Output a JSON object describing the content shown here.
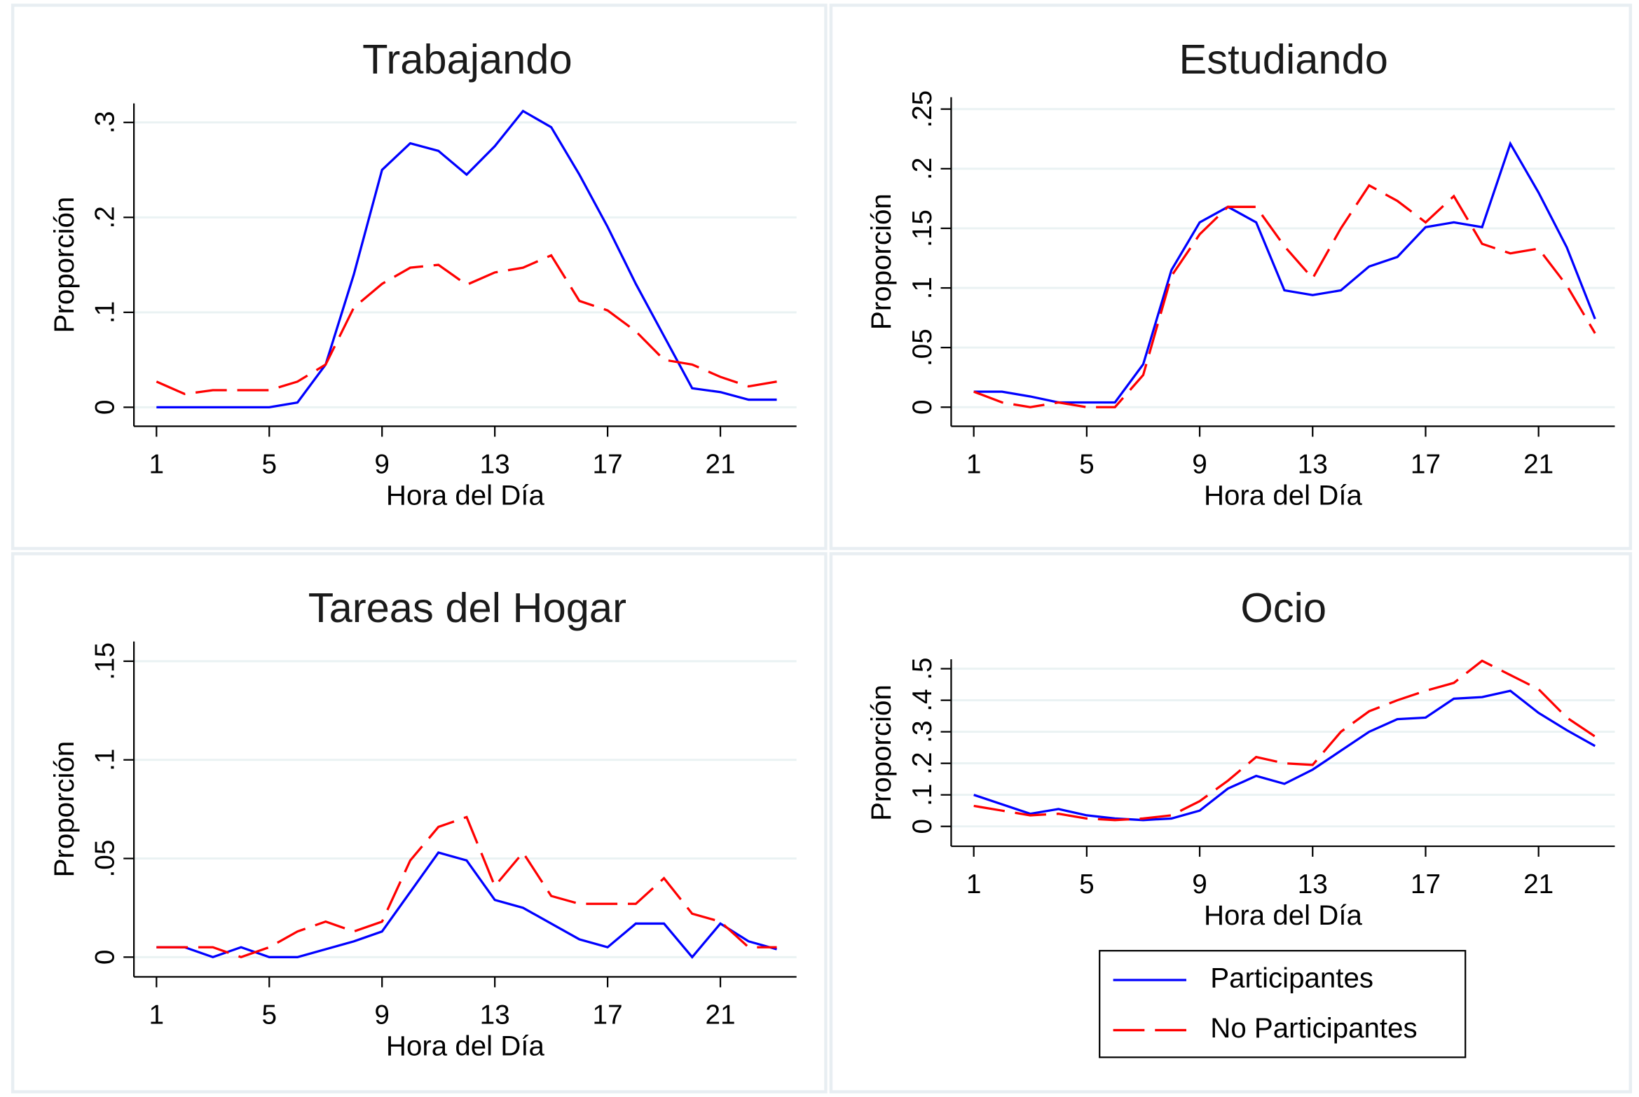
{
  "chart_data": [
    {
      "type": "line",
      "title": "Trabajando",
      "x_label": "Hora del Día",
      "y_label": "Proporción",
      "x": [
        1,
        2,
        3,
        4,
        5,
        6,
        7,
        8,
        9,
        10,
        11,
        12,
        13,
        14,
        15,
        16,
        17,
        18,
        19,
        20,
        21,
        22,
        23
      ],
      "xlim": [
        0.2,
        23.7
      ],
      "xticks": [
        1,
        5,
        9,
        13,
        17,
        21
      ],
      "ylim": [
        -0.02,
        0.32
      ],
      "yticks": [
        0,
        {
          "value": 0.1,
          "label": ".1"
        },
        {
          "value": 0.2,
          "label": ".2"
        },
        {
          "value": 0.3,
          "label": ".3"
        }
      ],
      "grid": true,
      "series": [
        {
          "name": "Participantes",
          "color": "#0000ff",
          "line_style": "solid",
          "values": [
            0,
            0,
            0,
            0,
            0,
            0.005,
            0.045,
            0.14,
            0.25,
            0.278,
            0.27,
            0.245,
            0.275,
            0.312,
            0.295,
            0.245,
            0.19,
            0.13,
            0.075,
            0.02,
            0.016,
            0.008,
            0.008
          ]
        },
        {
          "name": "No Participantes",
          "color": "#ff0000",
          "line_style": "dashed",
          "values": [
            0.027,
            0.014,
            0.018,
            0.018,
            0.018,
            0.027,
            0.045,
            0.105,
            0.13,
            0.147,
            0.15,
            0.129,
            0.142,
            0.147,
            0.16,
            0.112,
            0.102,
            0.08,
            0.05,
            0.045,
            0.032,
            0.022,
            0.027
          ]
        }
      ]
    },
    {
      "type": "line",
      "title": "Estudiando",
      "x_label": "Hora del Día",
      "y_label": "Proporción",
      "x": [
        1,
        2,
        3,
        4,
        5,
        6,
        7,
        8,
        9,
        10,
        11,
        12,
        13,
        14,
        15,
        16,
        17,
        18,
        19,
        20,
        21,
        22,
        23
      ],
      "xlim": [
        0.2,
        23.7
      ],
      "xticks": [
        1,
        5,
        9,
        13,
        17,
        21
      ],
      "ylim": [
        -0.016,
        0.26
      ],
      "yticks": [
        0,
        {
          "value": 0.05,
          "label": ".05"
        },
        {
          "value": 0.1,
          "label": ".1"
        },
        {
          "value": 0.15,
          "label": ".15"
        },
        {
          "value": 0.2,
          "label": ".2"
        },
        {
          "value": 0.25,
          "label": ".25"
        }
      ],
      "grid": true,
      "series": [
        {
          "name": "Participantes",
          "color": "#0000ff",
          "line_style": "solid",
          "values": [
            0.013,
            0.013,
            0.009,
            0.004,
            0.004,
            0.004,
            0.036,
            0.115,
            0.155,
            0.168,
            0.155,
            0.098,
            0.094,
            0.098,
            0.118,
            0.126,
            0.151,
            0.155,
            0.151,
            0.221,
            0.18,
            0.134,
            0.074
          ]
        },
        {
          "name": "No Participantes",
          "color": "#ff0000",
          "line_style": "dashed",
          "values": [
            0.013,
            0.004,
            0,
            0.004,
            0,
            0,
            0.027,
            0.11,
            0.145,
            0.168,
            0.168,
            0.135,
            0.108,
            0.15,
            0.186,
            0.173,
            0.155,
            0.177,
            0.137,
            0.129,
            0.133,
            0.102,
            0.062
          ]
        }
      ]
    },
    {
      "type": "line",
      "title": "Tareas del Hogar",
      "x_label": "Hora del Día",
      "y_label": "Proporción",
      "x": [
        1,
        2,
        3,
        4,
        5,
        6,
        7,
        8,
        9,
        10,
        11,
        12,
        13,
        14,
        15,
        16,
        17,
        18,
        19,
        20,
        21,
        22,
        23
      ],
      "xlim": [
        0.2,
        23.7
      ],
      "xticks": [
        1,
        5,
        9,
        13,
        17,
        21
      ],
      "ylim": [
        -0.01,
        0.16
      ],
      "yticks": [
        0,
        {
          "value": 0.05,
          "label": ".05"
        },
        {
          "value": 0.1,
          "label": ".1"
        },
        {
          "value": 0.15,
          "label": ".15"
        }
      ],
      "grid": true,
      "series": [
        {
          "name": "Participantes",
          "color": "#0000ff",
          "line_style": "solid",
          "values": [
            0.005,
            0.005,
            0,
            0.005,
            0,
            0,
            0.004,
            0.008,
            0.013,
            0.033,
            0.053,
            0.049,
            0.029,
            0.025,
            0.017,
            0.009,
            0.005,
            0.017,
            0.017,
            0,
            0.017,
            0.008,
            0.004
          ]
        },
        {
          "name": "No Participantes",
          "color": "#ff0000",
          "line_style": "dashed",
          "values": [
            0.005,
            0.005,
            0.005,
            0,
            0.005,
            0.013,
            0.018,
            0.013,
            0.018,
            0.049,
            0.066,
            0.071,
            0.036,
            0.053,
            0.031,
            0.027,
            0.027,
            0.027,
            0.04,
            0.022,
            0.018,
            0.005,
            0.005
          ]
        }
      ]
    },
    {
      "type": "line",
      "title": "Ocio",
      "x_label": "Hora del Día",
      "y_label": "Proporción",
      "x": [
        1,
        2,
        3,
        4,
        5,
        6,
        7,
        8,
        9,
        10,
        11,
        12,
        13,
        14,
        15,
        16,
        17,
        18,
        19,
        20,
        21,
        22,
        23
      ],
      "xlim": [
        0.2,
        23.7
      ],
      "xticks": [
        1,
        5,
        9,
        13,
        17,
        21
      ],
      "ylim": [
        -0.063,
        0.53
      ],
      "yticks": [
        0,
        {
          "value": 0.1,
          "label": ".1"
        },
        {
          "value": 0.2,
          "label": ".2"
        },
        {
          "value": 0.3,
          "label": ".3"
        },
        {
          "value": 0.4,
          "label": ".4"
        },
        {
          "value": 0.5,
          "label": ".5"
        }
      ],
      "grid": true,
      "legend": "below",
      "series": [
        {
          "name": "Participantes",
          "color": "#0000ff",
          "line_style": "solid",
          "values": [
            0.1,
            0.07,
            0.04,
            0.055,
            0.035,
            0.025,
            0.02,
            0.025,
            0.05,
            0.12,
            0.16,
            0.135,
            0.18,
            0.24,
            0.3,
            0.34,
            0.345,
            0.405,
            0.41,
            0.43,
            0.36,
            0.305,
            0.255
          ]
        },
        {
          "name": "No Participantes",
          "color": "#ff0000",
          "line_style": "dashed",
          "values": [
            0.065,
            0.05,
            0.035,
            0.04,
            0.025,
            0.02,
            0.025,
            0.035,
            0.08,
            0.145,
            0.22,
            0.2,
            0.195,
            0.3,
            0.365,
            0.4,
            0.43,
            0.455,
            0.525,
            0.48,
            0.435,
            0.345,
            0.285
          ]
        }
      ]
    }
  ]
}
